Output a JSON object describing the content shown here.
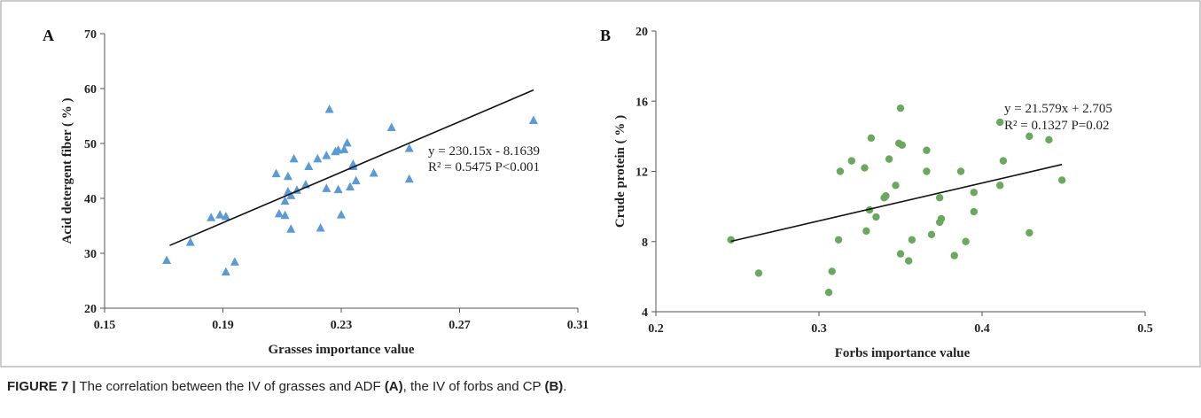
{
  "figure": {
    "caption_label": "FIGURE 7 |",
    "caption_pre": " The correlation between the IV of grasses and ADF ",
    "caption_tag_a": "(A)",
    "caption_mid": ", the IV of forbs and CP ",
    "caption_tag_b": "(B)",
    "caption_end": "."
  },
  "chart_data": [
    {
      "panel": "A",
      "type": "scatter",
      "xlabel": "Grasses importance value",
      "ylabel": "Acid detergent fiber ( % )",
      "xlim": [
        0.15,
        0.31
      ],
      "ylim": [
        20,
        70
      ],
      "xticks": [
        0.15,
        0.19,
        0.23,
        0.27,
        0.31
      ],
      "xtick_labels": [
        "0.15",
        "0.19",
        "0.23",
        "0.27",
        "0.31"
      ],
      "yticks": [
        20,
        30,
        40,
        50,
        60,
        70
      ],
      "ytick_labels": [
        "20",
        "30",
        "40",
        "50",
        "60",
        "70"
      ],
      "marker": "triangle",
      "color": "#5b9bd5",
      "equation": "y = 230.15x - 8.1639",
      "stats": "R² = 0.5475  P<0.001",
      "trendline": {
        "slope": 230.15,
        "intercept": -8.1639,
        "x_start": 0.172,
        "x_end": 0.295
      },
      "points": [
        [
          0.171,
          28.7
        ],
        [
          0.179,
          32.0
        ],
        [
          0.186,
          36.5
        ],
        [
          0.189,
          37.0
        ],
        [
          0.191,
          36.7
        ],
        [
          0.191,
          26.6
        ],
        [
          0.194,
          28.4
        ],
        [
          0.208,
          44.5
        ],
        [
          0.209,
          37.2
        ],
        [
          0.211,
          36.9
        ],
        [
          0.211,
          39.5
        ],
        [
          0.212,
          41.2
        ],
        [
          0.212,
          44.0
        ],
        [
          0.213,
          34.4
        ],
        [
          0.213,
          40.5
        ],
        [
          0.214,
          47.2
        ],
        [
          0.215,
          41.5
        ],
        [
          0.218,
          42.5
        ],
        [
          0.219,
          45.8
        ],
        [
          0.222,
          47.2
        ],
        [
          0.223,
          34.6
        ],
        [
          0.225,
          47.8
        ],
        [
          0.225,
          41.8
        ],
        [
          0.226,
          56.2
        ],
        [
          0.228,
          48.5
        ],
        [
          0.229,
          48.8
        ],
        [
          0.229,
          41.6
        ],
        [
          0.23,
          37.0
        ],
        [
          0.231,
          48.9
        ],
        [
          0.232,
          50.1
        ],
        [
          0.233,
          42.1
        ],
        [
          0.234,
          45.8
        ],
        [
          0.234,
          46.2
        ],
        [
          0.235,
          43.2
        ],
        [
          0.241,
          44.6
        ],
        [
          0.247,
          52.9
        ],
        [
          0.253,
          49.1
        ],
        [
          0.253,
          43.5
        ],
        [
          0.295,
          54.2
        ]
      ]
    },
    {
      "panel": "B",
      "type": "scatter",
      "xlabel": "Forbs importance value",
      "ylabel": "Crude protein ( % )",
      "xlim": [
        0.2,
        0.5
      ],
      "ylim": [
        4,
        20
      ],
      "xticks": [
        0.2,
        0.3,
        0.4,
        0.5
      ],
      "xtick_labels": [
        "0.2",
        "0.3",
        "0.4",
        "0.5"
      ],
      "yticks": [
        4,
        8,
        12,
        16,
        20
      ],
      "ytick_labels": [
        "4",
        "8",
        "12",
        "16",
        "20"
      ],
      "marker": "circle",
      "color": "#6aa85e",
      "equation": "y = 21.579x + 2.705",
      "stats": "R² = 0.1327  P=0.02",
      "trendline": {
        "slope": 21.579,
        "intercept": 2.705,
        "x_start": 0.246,
        "x_end": 0.449
      },
      "points": [
        [
          0.246,
          8.1
        ],
        [
          0.263,
          6.2
        ],
        [
          0.306,
          5.1
        ],
        [
          0.308,
          6.3
        ],
        [
          0.312,
          8.1
        ],
        [
          0.313,
          12.0
        ],
        [
          0.32,
          12.6
        ],
        [
          0.328,
          12.2
        ],
        [
          0.329,
          8.6
        ],
        [
          0.331,
          9.8
        ],
        [
          0.332,
          13.9
        ],
        [
          0.335,
          9.4
        ],
        [
          0.34,
          10.5
        ],
        [
          0.341,
          10.6
        ],
        [
          0.343,
          12.7
        ],
        [
          0.347,
          11.2
        ],
        [
          0.349,
          13.6
        ],
        [
          0.35,
          15.6
        ],
        [
          0.35,
          7.3
        ],
        [
          0.351,
          13.5
        ],
        [
          0.355,
          6.9
        ],
        [
          0.357,
          8.1
        ],
        [
          0.366,
          13.2
        ],
        [
          0.366,
          12.0
        ],
        [
          0.369,
          8.4
        ],
        [
          0.374,
          10.5
        ],
        [
          0.374,
          9.1
        ],
        [
          0.375,
          9.3
        ],
        [
          0.383,
          7.2
        ],
        [
          0.387,
          12.0
        ],
        [
          0.39,
          8.0
        ],
        [
          0.395,
          10.8
        ],
        [
          0.395,
          9.7
        ],
        [
          0.411,
          14.8
        ],
        [
          0.411,
          11.2
        ],
        [
          0.413,
          12.6
        ],
        [
          0.429,
          14.0
        ],
        [
          0.429,
          8.5
        ],
        [
          0.441,
          13.8
        ],
        [
          0.449,
          11.5
        ]
      ]
    }
  ]
}
